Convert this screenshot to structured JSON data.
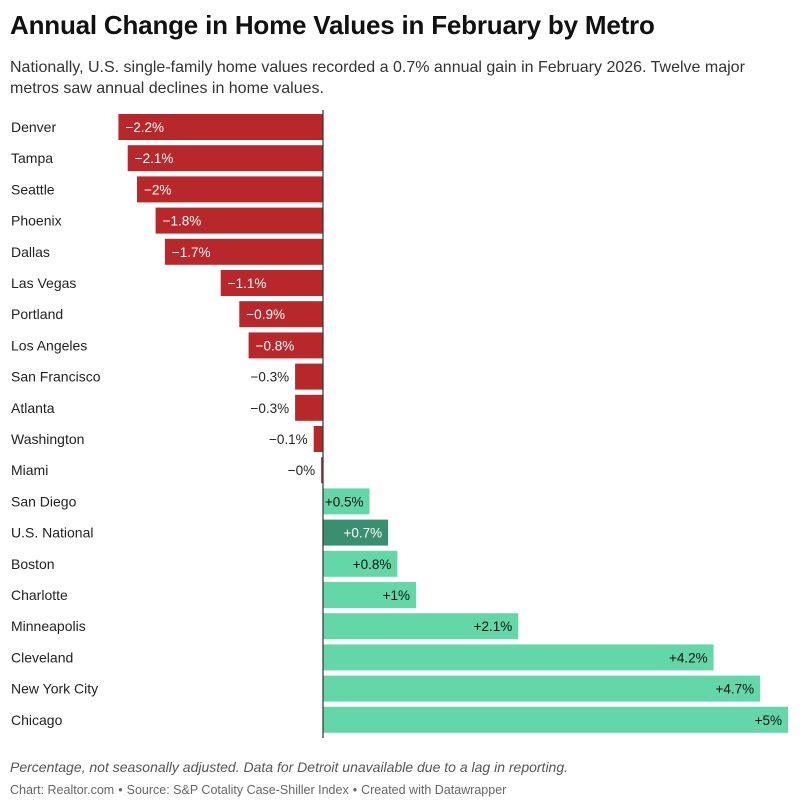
{
  "colors": {
    "negative": "#b8282a",
    "positive": "#63d7a8",
    "national": "#3b8f71",
    "axis": "#333333",
    "label_on_bar_dark": "#ffffff",
    "label_on_bar_light": "#111111"
  },
  "footer": {
    "note": "Percentage, not seasonally adjusted. Data for Detroit unavailable due to a lag in reporting.",
    "chart_credit": "Chart: Realtor.com",
    "source": "Source: S&P Cotality Case-Shiller Index",
    "created_with": "Created with Datawrapper",
    "separator": "•"
  },
  "chart_data": {
    "type": "bar",
    "orientation": "horizontal",
    "title": "Annual Change in Home Values in February by Metro",
    "subtitle": "Nationally, U.S. single-family home values recorded a 0.7% annual gain in February 2026. Twelve major metros saw annual declines in home values.",
    "categories": [
      "Denver",
      "Tampa",
      "Seattle",
      "Phoenix",
      "Dallas",
      "Las Vegas",
      "Portland",
      "Los Angeles",
      "San Francisco",
      "Atlanta",
      "Washington",
      "Miami",
      "San Diego",
      "U.S. National",
      "Boston",
      "Charlotte",
      "Minneapolis",
      "Cleveland",
      "New York City",
      "Chicago"
    ],
    "values": [
      -2.2,
      -2.1,
      -2.0,
      -1.8,
      -1.7,
      -1.1,
      -0.9,
      -0.8,
      -0.3,
      -0.3,
      -0.1,
      -0.02,
      0.5,
      0.7,
      0.8,
      1.0,
      2.1,
      4.2,
      4.7,
      5.0
    ],
    "value_labels": [
      "−2.2%",
      "−2.1%",
      "−2%",
      "−1.8%",
      "−1.7%",
      "−1.1%",
      "−0.9%",
      "−0.8%",
      "−0.3%",
      "−0.3%",
      "−0.1%",
      "−0%",
      "+0.5%",
      "+0.7%",
      "+0.8%",
      "+1%",
      "+2.1%",
      "+4.2%",
      "+4.7%",
      "+5%"
    ],
    "highlight": "U.S. National",
    "xlim": [
      -2.2,
      5.0
    ],
    "grid": false,
    "legend": "none"
  }
}
